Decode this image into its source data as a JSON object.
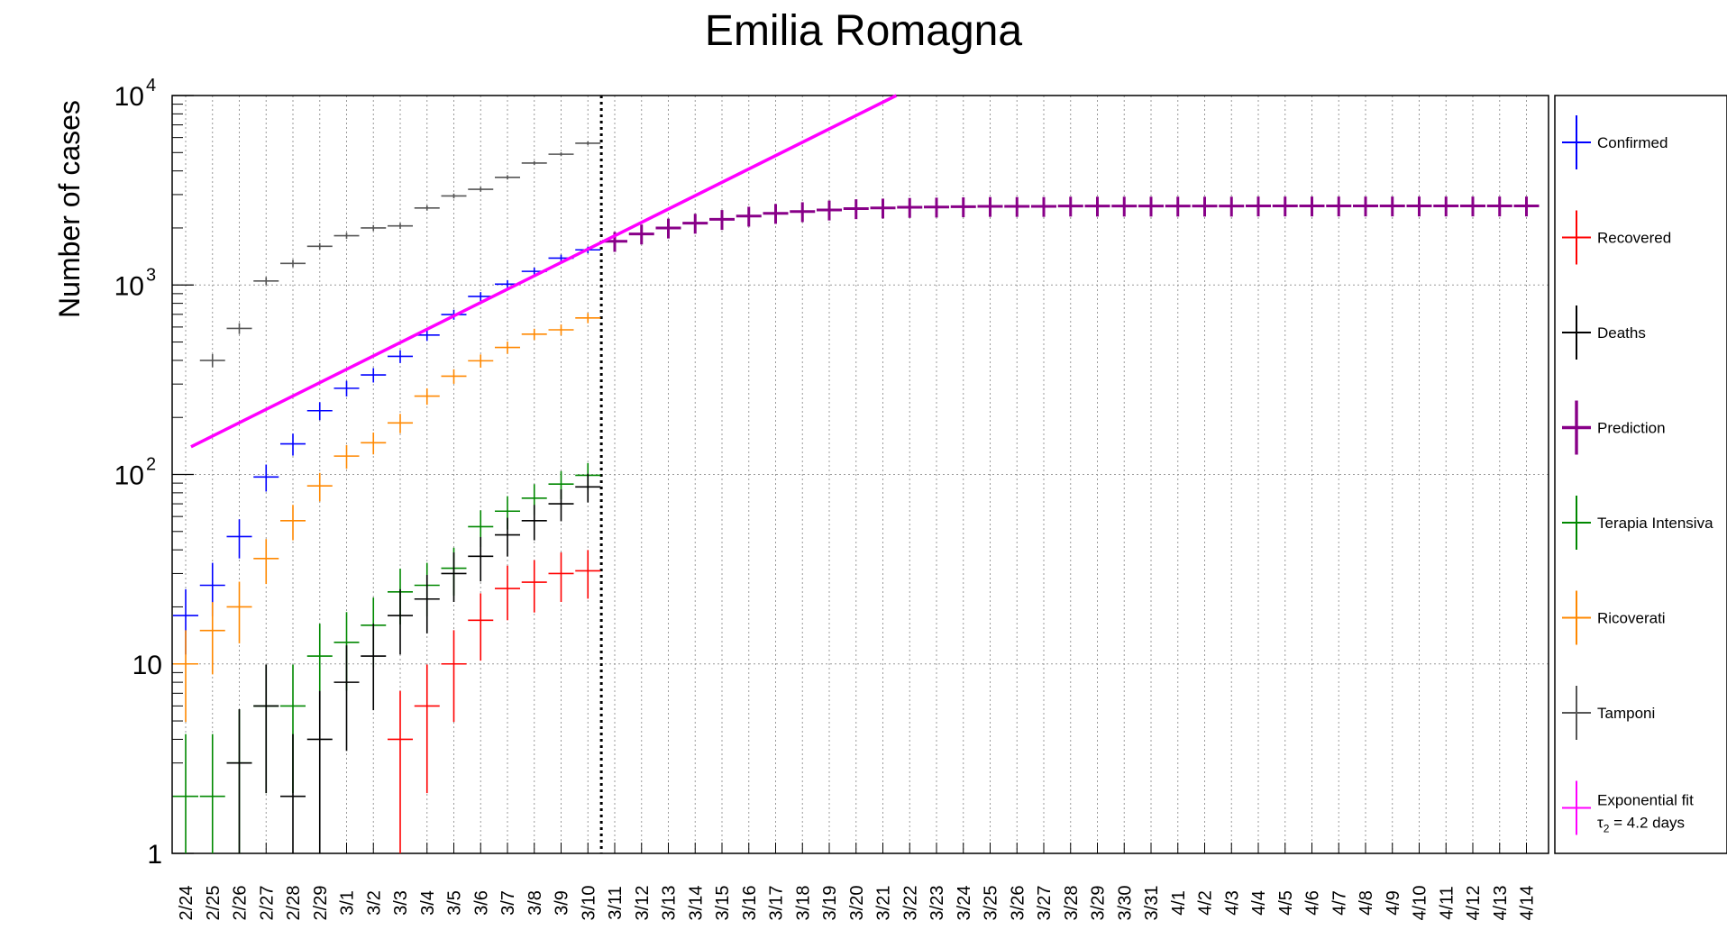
{
  "chart_data": {
    "type": "scatter",
    "title": "Emilia Romagna",
    "ylabel": "Number of cases",
    "yscale": "log",
    "ylim": [
      1,
      10000
    ],
    "grid": true,
    "legend_position": "right",
    "categories": [
      "2/24",
      "2/25",
      "2/26",
      "2/27",
      "2/28",
      "2/29",
      "3/1",
      "3/2",
      "3/3",
      "3/4",
      "3/5",
      "3/6",
      "3/7",
      "3/8",
      "3/9",
      "3/10",
      "3/11",
      "3/12",
      "3/13",
      "3/14",
      "3/15",
      "3/16",
      "3/17",
      "3/18",
      "3/19",
      "3/20",
      "3/21",
      "3/22",
      "3/23",
      "3/24",
      "3/25",
      "3/26",
      "3/27",
      "3/28",
      "3/29",
      "3/30",
      "3/31",
      "4/1",
      "4/2",
      "4/3",
      "4/4",
      "4/5",
      "4/6",
      "4/7",
      "4/8",
      "4/9",
      "4/10",
      "4/11",
      "4/12",
      "4/13",
      "4/14"
    ],
    "y_ticks": [
      {
        "value": 1,
        "base": "1",
        "exp": ""
      },
      {
        "value": 10,
        "base": "10",
        "exp": ""
      },
      {
        "value": 100,
        "base": "10",
        "exp": "2"
      },
      {
        "value": 1000,
        "base": "10",
        "exp": "3"
      },
      {
        "value": 10000,
        "base": "10",
        "exp": "4"
      }
    ],
    "marker_date": "3/10",
    "series": [
      {
        "name": "Tamponi",
        "color": "#555555",
        "points": [
          [
            1,
            400
          ],
          [
            2,
            590
          ],
          [
            3,
            1050
          ],
          [
            4,
            1300
          ],
          [
            5,
            1600
          ],
          [
            6,
            1820
          ],
          [
            7,
            2000
          ],
          [
            8,
            2050
          ],
          [
            9,
            2550
          ],
          [
            10,
            2950
          ],
          [
            11,
            3200
          ],
          [
            12,
            3700
          ],
          [
            13,
            4400
          ],
          [
            14,
            4900
          ],
          [
            15,
            5600
          ]
        ]
      },
      {
        "name": "Confirmed",
        "color": "#0000ff",
        "points": [
          [
            0,
            18
          ],
          [
            1,
            26
          ],
          [
            2,
            47
          ],
          [
            3,
            97
          ],
          [
            4,
            145
          ],
          [
            5,
            217
          ],
          [
            6,
            285
          ],
          [
            7,
            335
          ],
          [
            8,
            420
          ],
          [
            9,
            544
          ],
          [
            10,
            698
          ],
          [
            11,
            870
          ],
          [
            12,
            1010
          ],
          [
            13,
            1180
          ],
          [
            14,
            1386
          ],
          [
            15,
            1533
          ]
        ]
      },
      {
        "name": "Ricoverati",
        "color": "#ff8800",
        "points": [
          [
            0,
            10
          ],
          [
            1,
            15
          ],
          [
            2,
            20
          ],
          [
            3,
            36
          ],
          [
            4,
            57
          ],
          [
            5,
            87
          ],
          [
            6,
            125
          ],
          [
            7,
            147
          ],
          [
            8,
            187
          ],
          [
            9,
            259
          ],
          [
            10,
            330
          ],
          [
            11,
            398
          ],
          [
            12,
            468
          ],
          [
            13,
            550
          ],
          [
            14,
            580
          ],
          [
            15,
            670
          ]
        ]
      },
      {
        "name": "Terapia Intensiva",
        "color": "#008800",
        "points": [
          [
            0,
            2
          ],
          [
            1,
            2
          ],
          [
            2,
            3
          ],
          [
            3,
            6
          ],
          [
            4,
            6
          ],
          [
            5,
            11
          ],
          [
            6,
            13
          ],
          [
            7,
            16
          ],
          [
            8,
            24
          ],
          [
            9,
            26
          ],
          [
            10,
            32
          ],
          [
            11,
            53
          ],
          [
            12,
            64
          ],
          [
            13,
            75
          ],
          [
            14,
            89
          ],
          [
            15,
            99
          ]
        ]
      },
      {
        "name": "Deaths",
        "color": "#000000",
        "points": [
          [
            2,
            3
          ],
          [
            3,
            6
          ],
          [
            4,
            2
          ],
          [
            5,
            4
          ],
          [
            6,
            8
          ],
          [
            7,
            11
          ],
          [
            8,
            18
          ],
          [
            9,
            22
          ],
          [
            10,
            30
          ],
          [
            11,
            37
          ],
          [
            12,
            48
          ],
          [
            13,
            57
          ],
          [
            14,
            70
          ],
          [
            15,
            86
          ]
        ]
      },
      {
        "name": "Recovered",
        "color": "#ff0000",
        "points": [
          [
            8,
            4
          ],
          [
            9,
            6
          ],
          [
            10,
            10
          ],
          [
            11,
            17
          ],
          [
            12,
            25
          ],
          [
            13,
            27
          ],
          [
            14,
            30
          ],
          [
            15,
            31
          ]
        ]
      },
      {
        "name": "Prediction",
        "color": "#880088",
        "points": [
          [
            16,
            1700
          ],
          [
            17,
            1860
          ],
          [
            18,
            2000
          ],
          [
            19,
            2120
          ],
          [
            20,
            2220
          ],
          [
            21,
            2310
          ],
          [
            22,
            2390
          ],
          [
            23,
            2440
          ],
          [
            24,
            2490
          ],
          [
            25,
            2530
          ],
          [
            26,
            2550
          ],
          [
            27,
            2570
          ],
          [
            28,
            2580
          ],
          [
            29,
            2590
          ],
          [
            30,
            2600
          ],
          [
            31,
            2600
          ],
          [
            32,
            2600
          ],
          [
            33,
            2610
          ],
          [
            34,
            2610
          ],
          [
            35,
            2610
          ],
          [
            36,
            2610
          ],
          [
            37,
            2610
          ],
          [
            38,
            2610
          ],
          [
            39,
            2610
          ],
          [
            40,
            2615
          ],
          [
            41,
            2615
          ],
          [
            42,
            2615
          ],
          [
            43,
            2615
          ],
          [
            44,
            2615
          ],
          [
            45,
            2615
          ],
          [
            46,
            2615
          ],
          [
            47,
            2615
          ],
          [
            48,
            2615
          ],
          [
            49,
            2615
          ],
          [
            50,
            2615
          ]
        ]
      }
    ],
    "fit": {
      "name": "Exponential fit",
      "label_tau": "τ",
      "label_sub": "2",
      "label_rest": " = 4.2 days",
      "color": "#ff00ff",
      "start": [
        0.2,
        140
      ],
      "end": [
        26.5,
        10000
      ]
    },
    "legend": [
      "Confirmed",
      "Recovered",
      "Deaths",
      "Prediction",
      "Terapia Intensiva",
      "Ricoverati",
      "Tamponi",
      "Exponential fit"
    ]
  }
}
